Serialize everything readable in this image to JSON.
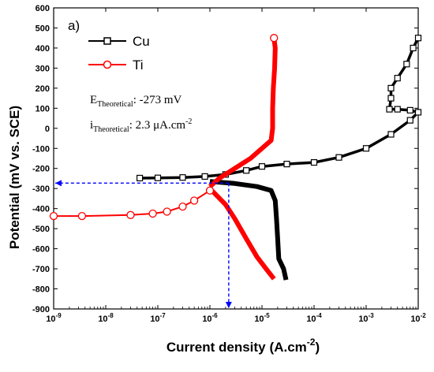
{
  "chart_data": {
    "type": "line",
    "panel_label": "a)",
    "xlabel": "Current density",
    "xlabel_unit": "(A.cm",
    "xlabel_sup": "-2",
    "xlabel_close": ")",
    "ylabel": "Potential (mV vs. SCE)",
    "x_scale": "log",
    "xlim": [
      1e-09,
      0.01
    ],
    "ylim": [
      -900,
      600
    ],
    "x_ticks": [
      1e-09,
      1e-08,
      1e-07,
      1e-06,
      1e-05,
      0.0001,
      0.001,
      0.01
    ],
    "x_tick_base": "10",
    "x_tick_exponents": [
      "-9",
      "-8",
      "-7",
      "-6",
      "-5",
      "-4",
      "-3",
      "-2"
    ],
    "y_ticks": [
      600,
      500,
      400,
      300,
      200,
      100,
      0,
      -100,
      -200,
      -300,
      -400,
      -500,
      -600,
      -700,
      -800,
      -900
    ],
    "y_tick_labels": [
      "600",
      "500",
      "400",
      "300",
      "200",
      "100",
      "0",
      "-100",
      "-200",
      "-300",
      "-400",
      "-500",
      "-600",
      "-700",
      "-800",
      "-900"
    ],
    "legend_position": "top-left",
    "series": [
      {
        "name": "Cu",
        "color": "#000000",
        "marker": "square",
        "anodic": [
          [
            4.5e-08,
            -248
          ],
          [
            1e-07,
            -247
          ],
          [
            3e-07,
            -245
          ],
          [
            8e-07,
            -240
          ],
          [
            2e-06,
            -230
          ],
          [
            5e-06,
            -210
          ],
          [
            1e-05,
            -190
          ],
          [
            3e-05,
            -178
          ],
          [
            0.0001,
            -170
          ],
          [
            0.0003,
            -145
          ],
          [
            0.001,
            -100
          ],
          [
            0.003,
            -30
          ],
          [
            0.007,
            40
          ],
          [
            0.01,
            80
          ],
          [
            0.007,
            90
          ],
          [
            0.004,
            95
          ],
          [
            0.0028,
            95
          ],
          [
            0.003,
            150
          ],
          [
            0.003,
            200
          ],
          [
            0.004,
            250
          ],
          [
            0.006,
            320
          ],
          [
            0.008,
            400
          ],
          [
            0.01,
            450
          ]
        ],
        "cathodic": [
          [
            1e-06,
            -265
          ],
          [
            3e-06,
            -275
          ],
          [
            8e-06,
            -290
          ],
          [
            1.5e-05,
            -310
          ],
          [
            1.8e-05,
            -360
          ],
          [
            1.9e-05,
            -450
          ],
          [
            2e-05,
            -550
          ],
          [
            2.1e-05,
            -650
          ],
          [
            2.6e-05,
            -700
          ],
          [
            2.9e-05,
            -755
          ]
        ]
      },
      {
        "name": "Ti",
        "color": "#ff0000",
        "marker": "circle",
        "anodic": [
          [
            1.7e-05,
            450
          ],
          [
            1.8e-05,
            400
          ],
          [
            1.75e-05,
            300
          ],
          [
            1.65e-05,
            200
          ],
          [
            1.6e-05,
            100
          ],
          [
            1.6e-05,
            0
          ],
          [
            1.5e-05,
            -60
          ],
          [
            1e-05,
            -100
          ],
          [
            6e-06,
            -150
          ],
          [
            3e-06,
            -200
          ],
          [
            1.5e-06,
            -250
          ],
          [
            1e-06,
            -290
          ]
        ],
        "cathodic": [
          [
            1e-06,
            -310
          ],
          [
            5e-07,
            -360
          ],
          [
            3e-07,
            -390
          ],
          [
            1.5e-07,
            -415
          ],
          [
            8e-08,
            -425
          ],
          [
            3e-08,
            -432
          ],
          [
            3.5e-09,
            -437
          ],
          [
            1e-09,
            -437
          ]
        ],
        "lower_branch": [
          [
            1e-06,
            -300
          ],
          [
            2e-06,
            -380
          ],
          [
            3e-06,
            -450
          ],
          [
            5e-06,
            -550
          ],
          [
            8e-06,
            -640
          ],
          [
            1.2e-05,
            -700
          ],
          [
            1.7e-05,
            -750
          ]
        ]
      }
    ],
    "annotations": {
      "e_theoretical_symbol": "E",
      "e_theoretical_sub": "Theoretical",
      "e_theoretical_value": ": -273 mV",
      "i_theoretical_symbol": "i",
      "i_theoretical_sub": "Theoretical",
      "i_theoretical_value": ": 2.3 μA.cm",
      "i_theoretical_sup": "-2",
      "dashed_color": "#0000ff",
      "corrosion_potential_mv": -273,
      "corrosion_current_density": 2.3e-06
    }
  }
}
